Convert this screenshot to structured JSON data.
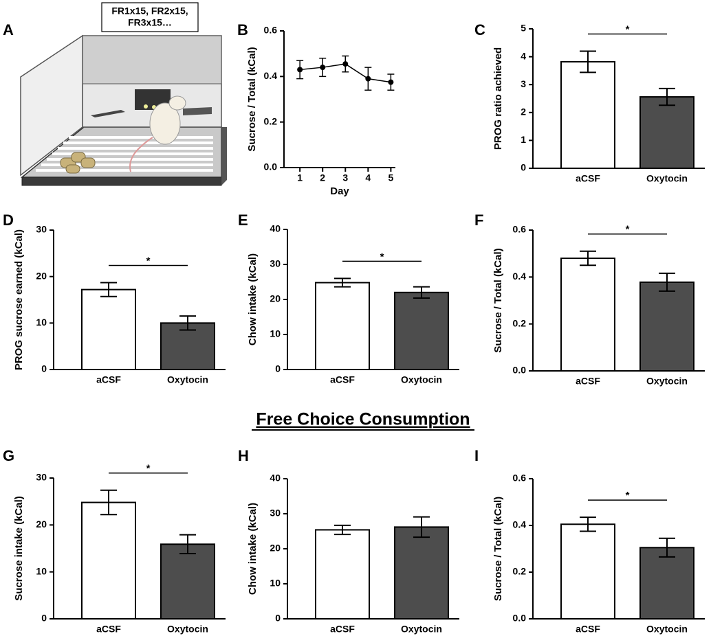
{
  "illustration": {
    "panel": "A",
    "label_lines": [
      "FR1x15, FR2x15,",
      "FR3x15…"
    ]
  },
  "section_title": "Free Choice Consumption",
  "chart_data": [
    {
      "type": "line",
      "panel": "B",
      "x": [
        1,
        2,
        3,
        4,
        5
      ],
      "values": [
        0.43,
        0.44,
        0.455,
        0.39,
        0.375
      ],
      "errors": [
        0.04,
        0.04,
        0.035,
        0.05,
        0.035
      ],
      "xlim": [
        0.3,
        5.2
      ],
      "xticks": [
        1,
        2,
        3,
        4,
        5
      ],
      "ylim": [
        0,
        0.6
      ],
      "yticks": [
        {
          "value": 0,
          "label": "0.0"
        },
        0.2,
        0.4,
        0.6
      ],
      "xlabel": "Day",
      "ylabel": "Sucrose / Total (kCal)",
      "color": "#000000"
    },
    {
      "type": "bar",
      "panel": "C",
      "categories": [
        "aCSF",
        "Oxytocin"
      ],
      "values": [
        3.82,
        2.56
      ],
      "errors": [
        0.38,
        0.3
      ],
      "colors": [
        "#ffffff",
        "#4d4d4d"
      ],
      "ylim": [
        0,
        5
      ],
      "yticks": [
        0,
        1,
        2,
        3,
        4,
        5
      ],
      "ylabel": "PROG ratio achieved",
      "significance": "*"
    },
    {
      "type": "bar",
      "panel": "D",
      "categories": [
        "aCSF",
        "Oxytocin"
      ],
      "values": [
        17.2,
        10
      ],
      "errors": [
        1.5,
        1.5
      ],
      "colors": [
        "#ffffff",
        "#4d4d4d"
      ],
      "ylim": [
        0,
        30
      ],
      "yticks": [
        0,
        10,
        20,
        30
      ],
      "ylabel": "PROG sucrose earned (kCal)",
      "significance": "*"
    },
    {
      "type": "bar",
      "panel": "E",
      "categories": [
        "aCSF",
        "Oxytocin"
      ],
      "values": [
        24.8,
        22
      ],
      "errors": [
        1.2,
        1.6
      ],
      "colors": [
        "#ffffff",
        "#4d4d4d"
      ],
      "ylim": [
        0,
        40
      ],
      "yticks": [
        0,
        10,
        20,
        30,
        40
      ],
      "ylabel": "Chow intake (kCal)",
      "significance": "*"
    },
    {
      "type": "bar",
      "panel": "F",
      "categories": [
        "aCSF",
        "Oxytocin"
      ],
      "values": [
        0.48,
        0.378
      ],
      "errors": [
        0.03,
        0.038
      ],
      "colors": [
        "#ffffff",
        "#4d4d4d"
      ],
      "ylim": [
        0,
        0.6
      ],
      "yticks": [
        {
          "value": 0,
          "label": "0.0"
        },
        0.2,
        0.4,
        0.6
      ],
      "ylabel": "Sucrose / Total (kCal)",
      "significance": "*"
    },
    {
      "type": "bar",
      "panel": "G",
      "categories": [
        "aCSF",
        "Oxytocin"
      ],
      "values": [
        24.8,
        15.9
      ],
      "errors": [
        2.6,
        2
      ],
      "colors": [
        "#ffffff",
        "#4d4d4d"
      ],
      "ylim": [
        0,
        30
      ],
      "yticks": [
        0,
        10,
        20,
        30
      ],
      "ylabel": "Sucrose intake (kCal)",
      "significance": "*"
    },
    {
      "type": "bar",
      "panel": "H",
      "categories": [
        "aCSF",
        "Oxytocin"
      ],
      "values": [
        25.4,
        26.2
      ],
      "errors": [
        1.3,
        2.9
      ],
      "colors": [
        "#ffffff",
        "#4d4d4d"
      ],
      "ylim": [
        0,
        40
      ],
      "yticks": [
        0,
        10,
        20,
        30,
        40
      ],
      "ylabel": "Chow intake (kCal)"
    },
    {
      "type": "bar",
      "panel": "I",
      "categories": [
        "aCSF",
        "Oxytocin"
      ],
      "values": [
        0.405,
        0.305
      ],
      "errors": [
        0.03,
        0.04
      ],
      "colors": [
        "#ffffff",
        "#4d4d4d"
      ],
      "ylim": [
        0,
        0.6
      ],
      "yticks": [
        {
          "value": 0,
          "label": "0.0"
        },
        0.2,
        0.4,
        0.6
      ],
      "ylabel": "Sucrose / Total (kCal)",
      "significance": "*"
    }
  ]
}
